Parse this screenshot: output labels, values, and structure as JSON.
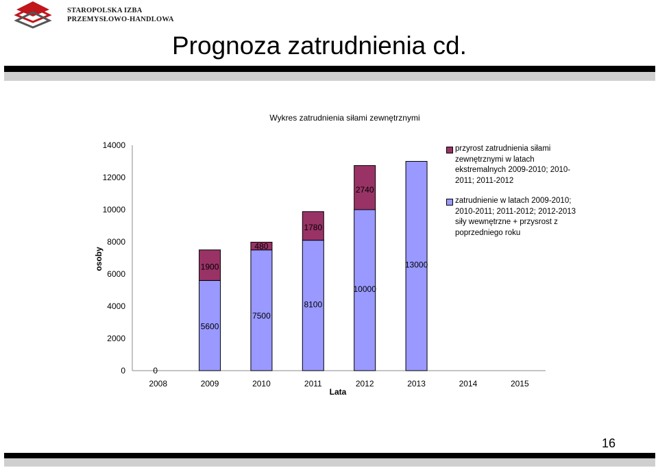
{
  "header": {
    "logo_line1": "STAROPOLSKA IZBA",
    "logo_line2": "PRZEMYSŁOWO-HANDLOWA",
    "slide_title": "Prognoza zatrudnienia cd."
  },
  "footer": {
    "page_number": "16"
  },
  "colors": {
    "increase": "#993366",
    "base": "#9999ff",
    "zero_label": "#ffc000"
  },
  "chart_data": {
    "type": "bar",
    "stacked": true,
    "title": "Wykres zatrudnienia siłami zewnętrznymi",
    "xlabel": "Lata",
    "ylabel": "osoby",
    "ylim": [
      0,
      14000
    ],
    "yticks": [
      "0",
      "2000",
      "4000",
      "6000",
      "8000",
      "10000",
      "12000",
      "14000"
    ],
    "categories": [
      "2008",
      "2009",
      "2010",
      "2011",
      "2012",
      "2013",
      "2014",
      "2015"
    ],
    "series": [
      {
        "name": "zatrudnienie w latach 2009-2010; 2010-2011; 2011-2012; 2012-2013 siły wewnętrzne + przysrost z poprzedniego roku",
        "values": [
          0,
          5600,
          7500,
          8100,
          10000,
          13000,
          null,
          null
        ],
        "labels": [
          "0",
          "5600",
          "7500",
          "8100",
          "10000",
          "13000",
          "",
          ""
        ]
      },
      {
        "name": "przyrost zatrudnienia siłami zewnętrznymi w latach ekstremalnych 2009-2010; 2010-2011; 2011-2012",
        "values": [
          null,
          1900,
          480,
          1780,
          2740,
          null,
          null,
          null
        ],
        "labels": [
          "",
          "1900",
          "480",
          "1780",
          "2740",
          "",
          "",
          ""
        ]
      }
    ],
    "legend_position": "right"
  }
}
